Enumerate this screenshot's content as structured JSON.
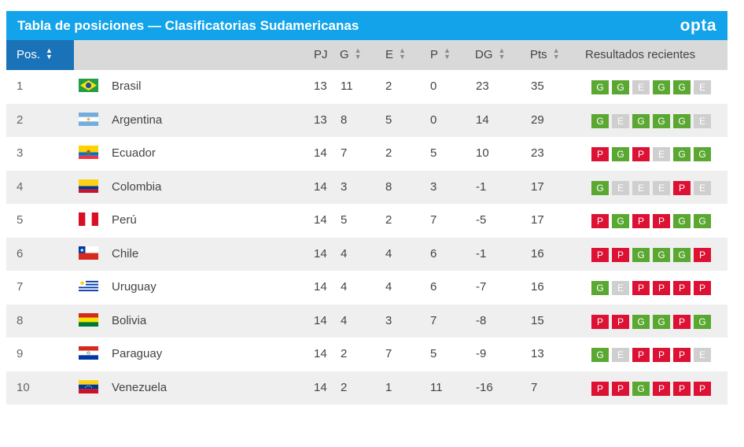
{
  "widget": {
    "title": "Tabla de posiciones — Clasificatorias Sudamericanas",
    "brand": "opta"
  },
  "header": {
    "pos": "Pos.",
    "pj": "PJ",
    "g": "G",
    "e": "E",
    "p": "P",
    "dg": "DG",
    "pts": "Pts",
    "recent": "Resultados recientes"
  },
  "colors": {
    "title_bar": "#12a3ea",
    "pos_header": "#1a73b8",
    "win": "#5aa832",
    "draw": "#cfcfcf",
    "loss": "#dd1133"
  },
  "rows": [
    {
      "pos": "1",
      "flag": "brazil-flag-icon",
      "team": "Brasil",
      "pj": "13",
      "g": "11",
      "e": "2",
      "p": "0",
      "dg": "23",
      "pts": "35",
      "recent": [
        "G",
        "G",
        "E",
        "G",
        "G",
        "E"
      ]
    },
    {
      "pos": "2",
      "flag": "argentina-flag-icon",
      "team": "Argentina",
      "pj": "13",
      "g": "8",
      "e": "5",
      "p": "0",
      "dg": "14",
      "pts": "29",
      "recent": [
        "G",
        "E",
        "G",
        "G",
        "G",
        "E"
      ]
    },
    {
      "pos": "3",
      "flag": "ecuador-flag-icon",
      "team": "Ecuador",
      "pj": "14",
      "g": "7",
      "e": "2",
      "p": "5",
      "dg": "10",
      "pts": "23",
      "recent": [
        "P",
        "G",
        "P",
        "E",
        "G",
        "G"
      ]
    },
    {
      "pos": "4",
      "flag": "colombia-flag-icon",
      "team": "Colombia",
      "pj": "14",
      "g": "3",
      "e": "8",
      "p": "3",
      "dg": "-1",
      "pts": "17",
      "recent": [
        "G",
        "E",
        "E",
        "E",
        "P",
        "E"
      ]
    },
    {
      "pos": "5",
      "flag": "peru-flag-icon",
      "team": "Perú",
      "pj": "14",
      "g": "5",
      "e": "2",
      "p": "7",
      "dg": "-5",
      "pts": "17",
      "recent": [
        "P",
        "G",
        "P",
        "P",
        "G",
        "G"
      ]
    },
    {
      "pos": "6",
      "flag": "chile-flag-icon",
      "team": "Chile",
      "pj": "14",
      "g": "4",
      "e": "4",
      "p": "6",
      "dg": "-1",
      "pts": "16",
      "recent": [
        "P",
        "P",
        "G",
        "G",
        "G",
        "P"
      ]
    },
    {
      "pos": "7",
      "flag": "uruguay-flag-icon",
      "team": "Uruguay",
      "pj": "14",
      "g": "4",
      "e": "4",
      "p": "6",
      "dg": "-7",
      "pts": "16",
      "recent": [
        "G",
        "E",
        "P",
        "P",
        "P",
        "P"
      ]
    },
    {
      "pos": "8",
      "flag": "bolivia-flag-icon",
      "team": "Bolivia",
      "pj": "14",
      "g": "4",
      "e": "3",
      "p": "7",
      "dg": "-8",
      "pts": "15",
      "recent": [
        "P",
        "P",
        "G",
        "G",
        "P",
        "G"
      ]
    },
    {
      "pos": "9",
      "flag": "paraguay-flag-icon",
      "team": "Paraguay",
      "pj": "14",
      "g": "2",
      "e": "7",
      "p": "5",
      "dg": "-9",
      "pts": "13",
      "recent": [
        "G",
        "E",
        "P",
        "P",
        "P",
        "E"
      ]
    },
    {
      "pos": "10",
      "flag": "venezuela-flag-icon",
      "team": "Venezuela",
      "pj": "14",
      "g": "2",
      "e": "1",
      "p": "11",
      "dg": "-16",
      "pts": "7",
      "recent": [
        "P",
        "P",
        "G",
        "P",
        "P",
        "P"
      ]
    }
  ]
}
